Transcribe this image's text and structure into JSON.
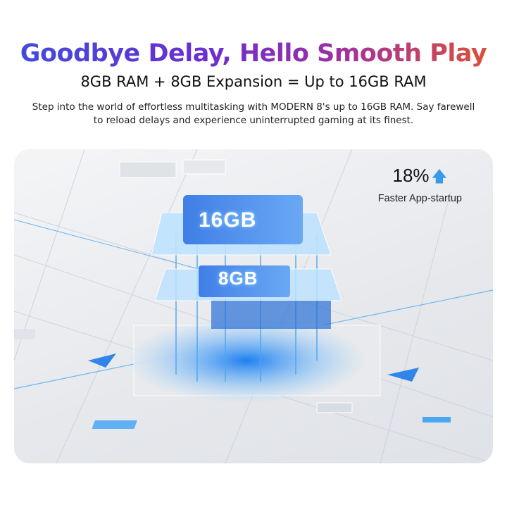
{
  "header": {
    "title": "Goodbye Delay, Hello Smooth Play",
    "subtitle": "8GB RAM + 8GB Expansion = Up to 16GB RAM",
    "description": "Step into the world of effortless multitasking with MODERN 8's up to 16GB RAM. Say farewell to reload delays and experience uninterrupted gaming at its finest."
  },
  "illustration": {
    "top_chip_label": "16GB",
    "bottom_chip_label": "8GB",
    "accent_color": "#3a9ae8"
  },
  "stat": {
    "value": "18%",
    "icon": "arrow-up-icon",
    "label": "Faster App-startup"
  }
}
